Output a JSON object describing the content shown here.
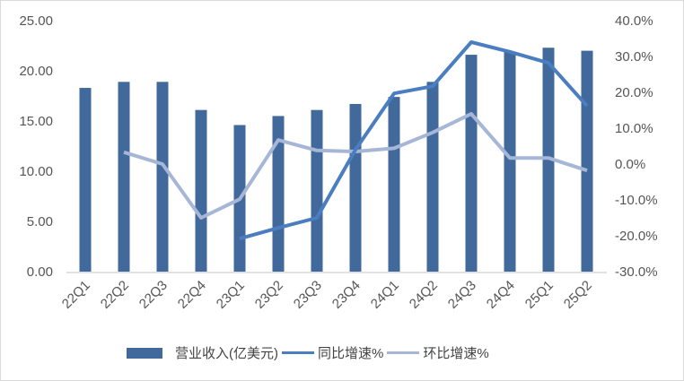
{
  "chart_data": {
    "type": "bar+line",
    "categories": [
      "22Q1",
      "22Q2",
      "22Q3",
      "22Q4",
      "23Q1",
      "23Q2",
      "23Q3",
      "23Q4",
      "24Q1",
      "24Q2",
      "24Q3",
      "24Q4",
      "25Q1",
      "25Q2"
    ],
    "series": [
      {
        "name": "营业收入(亿美元)",
        "type": "bar",
        "axis": "left",
        "color": "#41699C",
        "values": [
          18.3,
          18.9,
          18.9,
          16.1,
          14.6,
          15.5,
          16.1,
          16.7,
          17.4,
          18.9,
          21.6,
          21.9,
          22.3,
          22.0
        ]
      },
      {
        "name": "同比增速%",
        "type": "line",
        "axis": "right",
        "color": "#4A7EC0",
        "values": [
          null,
          null,
          null,
          null,
          -20.8,
          -17.8,
          -15.0,
          4.0,
          19.7,
          21.7,
          34.0,
          31.3,
          28.2,
          16.2
        ]
      },
      {
        "name": "环比增速%",
        "type": "line",
        "axis": "right",
        "color": "#A6B6D6",
        "values": [
          null,
          3.3,
          0.0,
          -15.0,
          -9.8,
          6.7,
          3.8,
          3.5,
          4.4,
          8.8,
          14.0,
          1.7,
          1.7,
          -1.8
        ]
      }
    ],
    "left_axis": {
      "ylim": [
        0,
        25
      ],
      "ticks": [
        "0.00",
        "5.00",
        "10.00",
        "15.00",
        "20.00",
        "25.00"
      ]
    },
    "right_axis": {
      "ylim": [
        -30,
        40
      ],
      "ticks": [
        "-30.0%",
        "-20.0%",
        "-10.0%",
        "0.0%",
        "10.0%",
        "20.0%",
        "30.0%",
        "40.0%"
      ]
    },
    "grid": false,
    "legend_position": "bottom"
  }
}
